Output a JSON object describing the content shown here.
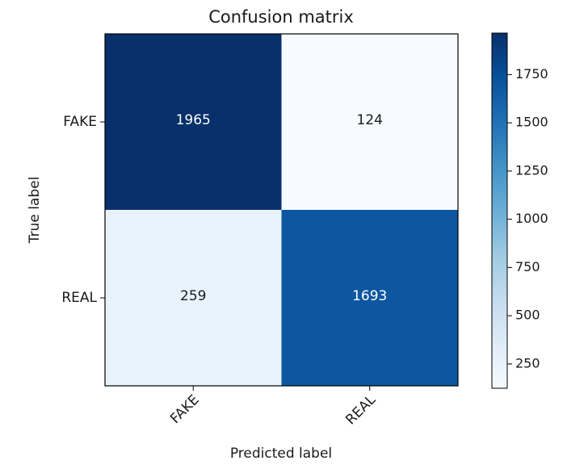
{
  "chart_data": {
    "type": "heatmap",
    "title": "Confusion matrix",
    "xlabel": "Predicted label",
    "ylabel": "True label",
    "x_categories": [
      "FAKE",
      "REAL"
    ],
    "y_categories": [
      "FAKE",
      "REAL"
    ],
    "values": [
      [
        1965,
        124
      ],
      [
        259,
        1693
      ]
    ],
    "colormap": "Blues",
    "colorbar": {
      "range": [
        124,
        1965
      ],
      "ticks": [
        250,
        500,
        750,
        1000,
        1250,
        1500,
        1750
      ]
    },
    "text_colors": {
      "light_cell": "#1a1a1a",
      "dark_cell": "#ffffff"
    },
    "grid": false
  }
}
